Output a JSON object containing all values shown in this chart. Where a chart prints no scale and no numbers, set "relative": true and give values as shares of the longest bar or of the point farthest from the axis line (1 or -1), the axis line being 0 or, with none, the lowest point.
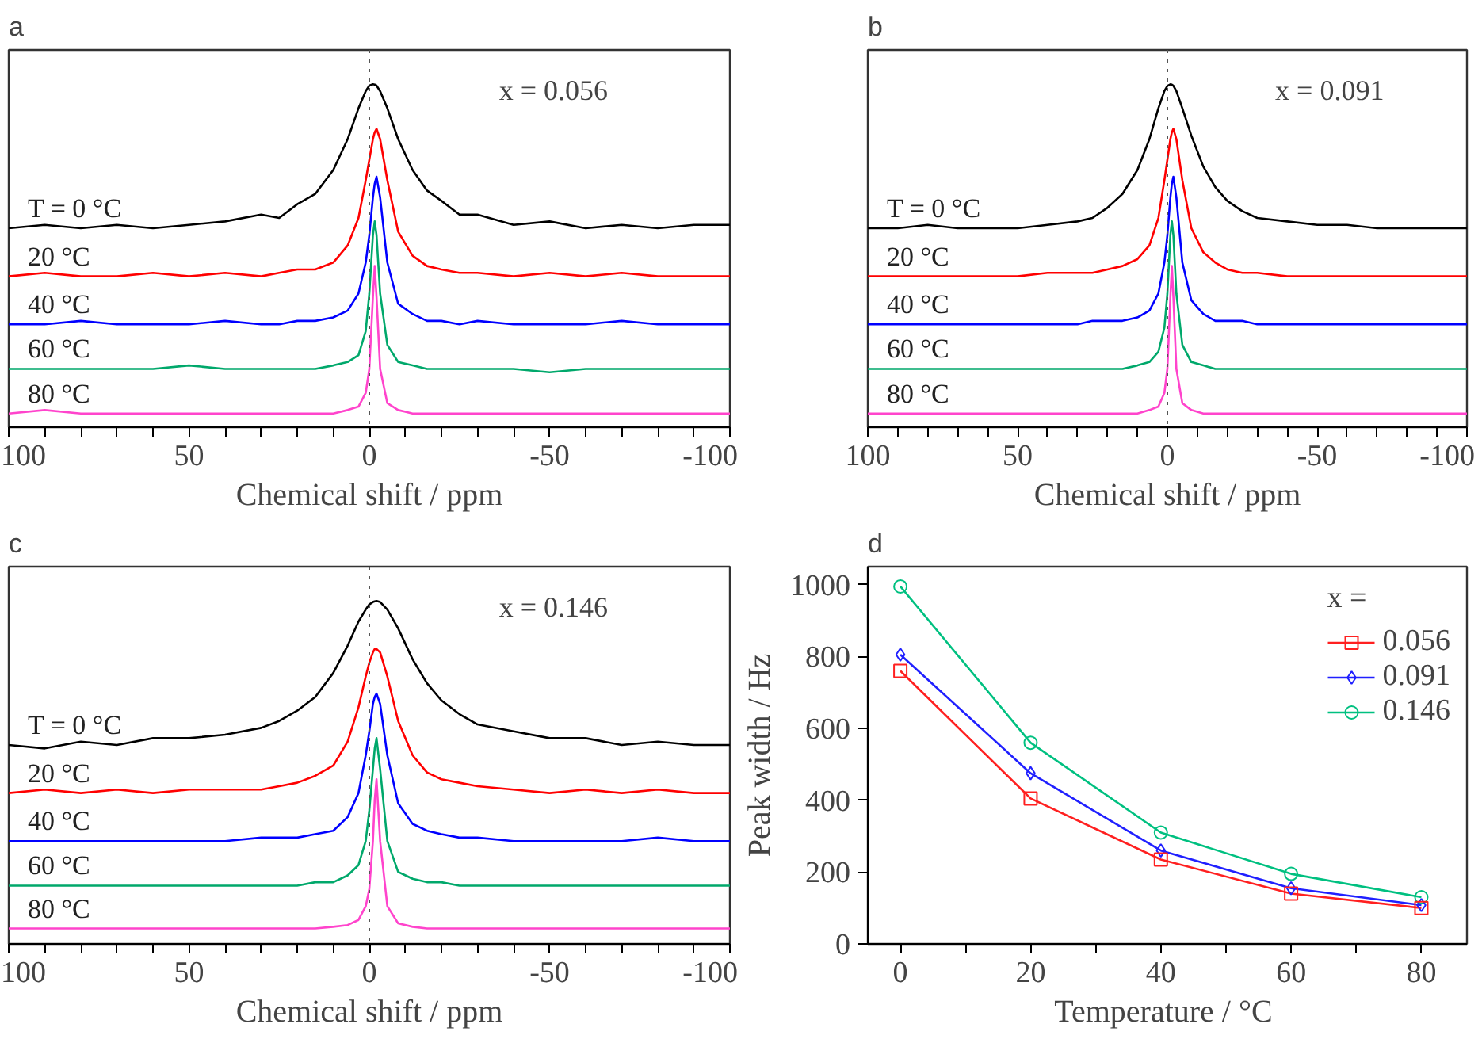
{
  "chart_data": [
    {
      "type": "line",
      "title": "a",
      "xlabel": "Chemical shift / ppm",
      "relative": true,
      "tick_labels": "x",
      "annotations": [
        "x = 0.056"
      ],
      "ref_lines": [
        {
          "axis": "x",
          "value": 0,
          "color": "#555555",
          "line_style": "dotted"
        }
      ],
      "xlim": [
        100,
        -100
      ],
      "xticks": [
        100,
        {
          "value": 90,
          "label": null
        },
        {
          "value": 80,
          "label": null
        },
        {
          "value": 70,
          "label": null
        },
        {
          "value": 60,
          "label": null
        },
        50,
        {
          "value": 40,
          "label": null
        },
        {
          "value": 30,
          "label": null
        },
        {
          "value": 20,
          "label": null
        },
        {
          "value": 10,
          "label": null
        },
        0,
        {
          "value": -10,
          "label": null
        },
        {
          "value": -20,
          "label": null
        },
        {
          "value": -30,
          "label": null
        },
        {
          "value": -40,
          "label": null
        },
        -50,
        {
          "value": -60,
          "label": null
        },
        {
          "value": -70,
          "label": null
        },
        {
          "value": -80,
          "label": null
        },
        {
          "value": -90,
          "label": null
        },
        -100
      ],
      "x": [
        100,
        90,
        80,
        70,
        60,
        50,
        40,
        30,
        25,
        20,
        15,
        10,
        6,
        3,
        1,
        0,
        -1,
        -1.5,
        -2,
        -3,
        -5,
        -8,
        -12,
        -16,
        -20,
        -25,
        -30,
        -40,
        -50,
        -60,
        -70,
        -80,
        -90,
        -100
      ],
      "series": [
        {
          "name": "T = 0 °C",
          "color": "#000000",
          "values": [
            0.58,
            0.59,
            0.58,
            0.59,
            0.58,
            0.59,
            0.6,
            0.62,
            0.61,
            0.65,
            0.68,
            0.75,
            0.84,
            0.93,
            0.98,
            0.996,
            1.0,
            0.999,
            0.996,
            0.98,
            0.93,
            0.84,
            0.75,
            0.69,
            0.66,
            0.62,
            0.62,
            0.59,
            0.6,
            0.58,
            0.59,
            0.58,
            0.59,
            0.59
          ]
        },
        {
          "name": "20 °C",
          "color": "#ff0000",
          "values": [
            0.44,
            0.45,
            0.44,
            0.44,
            0.45,
            0.44,
            0.45,
            0.44,
            0.45,
            0.46,
            0.46,
            0.48,
            0.53,
            0.61,
            0.72,
            0.78,
            0.84,
            0.86,
            0.87,
            0.84,
            0.72,
            0.57,
            0.5,
            0.47,
            0.46,
            0.45,
            0.45,
            0.44,
            0.45,
            0.44,
            0.45,
            0.44,
            0.44,
            0.44
          ]
        },
        {
          "name": "40 °C",
          "color": "#0000ff",
          "values": [
            0.3,
            0.3,
            0.31,
            0.3,
            0.3,
            0.3,
            0.31,
            0.3,
            0.3,
            0.31,
            0.31,
            0.32,
            0.34,
            0.39,
            0.48,
            0.56,
            0.67,
            0.71,
            0.73,
            0.67,
            0.48,
            0.36,
            0.33,
            0.31,
            0.31,
            0.3,
            0.31,
            0.3,
            0.3,
            0.3,
            0.31,
            0.3,
            0.3,
            0.3
          ]
        },
        {
          "name": "60 °C",
          "color": "#00a86b",
          "values": [
            0.17,
            0.17,
            0.17,
            0.17,
            0.17,
            0.18,
            0.17,
            0.17,
            0.17,
            0.17,
            0.17,
            0.18,
            0.19,
            0.21,
            0.28,
            0.39,
            0.56,
            0.6,
            0.56,
            0.39,
            0.24,
            0.19,
            0.18,
            0.17,
            0.17,
            0.17,
            0.17,
            0.17,
            0.16,
            0.17,
            0.17,
            0.17,
            0.17,
            0.17
          ]
        },
        {
          "name": "80 °C",
          "color": "#ff44cc",
          "values": [
            0.04,
            0.05,
            0.04,
            0.04,
            0.04,
            0.04,
            0.04,
            0.04,
            0.04,
            0.04,
            0.04,
            0.04,
            0.05,
            0.06,
            0.1,
            0.17,
            0.38,
            0.47,
            0.38,
            0.17,
            0.07,
            0.05,
            0.04,
            0.04,
            0.04,
            0.04,
            0.04,
            0.04,
            0.04,
            0.04,
            0.04,
            0.04,
            0.04,
            0.04
          ]
        }
      ]
    },
    {
      "type": "line",
      "title": "b",
      "xlabel": "Chemical shift / ppm",
      "relative": true,
      "tick_labels": "x",
      "annotations": [
        "x = 0.091"
      ],
      "ref_lines": [
        {
          "axis": "x",
          "value": 0,
          "color": "#555555",
          "line_style": "dotted"
        }
      ],
      "xlim": [
        100,
        -100
      ],
      "xticks": [
        100,
        {
          "value": 90,
          "label": null
        },
        {
          "value": 80,
          "label": null
        },
        {
          "value": 70,
          "label": null
        },
        {
          "value": 60,
          "label": null
        },
        50,
        {
          "value": 40,
          "label": null
        },
        {
          "value": 30,
          "label": null
        },
        {
          "value": 20,
          "label": null
        },
        {
          "value": 10,
          "label": null
        },
        0,
        {
          "value": -10,
          "label": null
        },
        {
          "value": -20,
          "label": null
        },
        {
          "value": -30,
          "label": null
        },
        {
          "value": -40,
          "label": null
        },
        -50,
        {
          "value": -60,
          "label": null
        },
        {
          "value": -70,
          "label": null
        },
        {
          "value": -80,
          "label": null
        },
        {
          "value": -90,
          "label": null
        },
        -100
      ],
      "x": [
        100,
        90,
        80,
        70,
        60,
        50,
        40,
        30,
        25,
        20,
        15,
        10,
        6,
        3,
        1,
        0,
        -1,
        -1.5,
        -2,
        -3,
        -5,
        -8,
        -12,
        -16,
        -20,
        -25,
        -30,
        -40,
        -50,
        -60,
        -70,
        -80,
        -90,
        -100
      ],
      "series": [
        {
          "name": "T = 0 °C",
          "color": "#000000",
          "values": [
            0.58,
            0.58,
            0.59,
            0.58,
            0.58,
            0.58,
            0.59,
            0.6,
            0.61,
            0.64,
            0.68,
            0.75,
            0.84,
            0.93,
            0.98,
            0.995,
            1.0,
            0.999,
            0.996,
            0.98,
            0.93,
            0.85,
            0.76,
            0.7,
            0.66,
            0.63,
            0.61,
            0.6,
            0.59,
            0.59,
            0.58,
            0.58,
            0.58,
            0.58
          ]
        },
        {
          "name": "20 °C",
          "color": "#ff0000",
          "values": [
            0.44,
            0.44,
            0.44,
            0.44,
            0.44,
            0.44,
            0.45,
            0.45,
            0.45,
            0.46,
            0.47,
            0.49,
            0.53,
            0.61,
            0.72,
            0.78,
            0.84,
            0.86,
            0.87,
            0.84,
            0.72,
            0.58,
            0.51,
            0.48,
            0.46,
            0.45,
            0.45,
            0.44,
            0.44,
            0.44,
            0.44,
            0.44,
            0.44,
            0.44
          ]
        },
        {
          "name": "40 °C",
          "color": "#0000ff",
          "values": [
            0.3,
            0.3,
            0.3,
            0.3,
            0.3,
            0.3,
            0.3,
            0.3,
            0.31,
            0.31,
            0.31,
            0.32,
            0.34,
            0.39,
            0.48,
            0.56,
            0.67,
            0.71,
            0.73,
            0.67,
            0.48,
            0.37,
            0.33,
            0.31,
            0.31,
            0.31,
            0.3,
            0.3,
            0.3,
            0.3,
            0.3,
            0.3,
            0.3,
            0.3
          ]
        },
        {
          "name": "60 °C",
          "color": "#00a86b",
          "values": [
            0.17,
            0.17,
            0.17,
            0.17,
            0.17,
            0.17,
            0.17,
            0.17,
            0.17,
            0.17,
            0.17,
            0.18,
            0.19,
            0.22,
            0.29,
            0.39,
            0.56,
            0.6,
            0.56,
            0.39,
            0.24,
            0.19,
            0.18,
            0.17,
            0.17,
            0.17,
            0.17,
            0.17,
            0.17,
            0.17,
            0.17,
            0.17,
            0.17,
            0.17
          ]
        },
        {
          "name": "80 °C",
          "color": "#ff44cc",
          "values": [
            0.04,
            0.04,
            0.04,
            0.04,
            0.04,
            0.04,
            0.04,
            0.04,
            0.04,
            0.04,
            0.04,
            0.04,
            0.05,
            0.06,
            0.1,
            0.17,
            0.38,
            0.47,
            0.38,
            0.17,
            0.07,
            0.05,
            0.04,
            0.04,
            0.04,
            0.04,
            0.04,
            0.04,
            0.04,
            0.04,
            0.04,
            0.04,
            0.04,
            0.04
          ]
        }
      ]
    },
    {
      "type": "line",
      "title": "c",
      "xlabel": "Chemical shift / ppm",
      "relative": true,
      "tick_labels": "x",
      "annotations": [
        "x = 0.146"
      ],
      "ref_lines": [
        {
          "axis": "x",
          "value": 0,
          "color": "#555555",
          "line_style": "dotted"
        }
      ],
      "xlim": [
        100,
        -100
      ],
      "xticks": [
        100,
        {
          "value": 90,
          "label": null
        },
        {
          "value": 80,
          "label": null
        },
        {
          "value": 70,
          "label": null
        },
        {
          "value": 60,
          "label": null
        },
        50,
        {
          "value": 40,
          "label": null
        },
        {
          "value": 30,
          "label": null
        },
        {
          "value": 20,
          "label": null
        },
        {
          "value": 10,
          "label": null
        },
        0,
        {
          "value": -10,
          "label": null
        },
        {
          "value": -20,
          "label": null
        },
        {
          "value": -30,
          "label": null
        },
        {
          "value": -40,
          "label": null
        },
        -50,
        {
          "value": -60,
          "label": null
        },
        {
          "value": -70,
          "label": null
        },
        {
          "value": -80,
          "label": null
        },
        {
          "value": -90,
          "label": null
        },
        -100
      ],
      "x": [
        100,
        90,
        80,
        70,
        60,
        50,
        40,
        30,
        25,
        20,
        15,
        10,
        6,
        3,
        1,
        0,
        -1,
        -1.5,
        -2,
        -3,
        -5,
        -8,
        -12,
        -16,
        -20,
        -25,
        -30,
        -40,
        -50,
        -60,
        -70,
        -80,
        -90,
        -100
      ],
      "series": [
        {
          "name": "T = 0 °C",
          "color": "#000000",
          "values": [
            0.58,
            0.57,
            0.59,
            0.58,
            0.6,
            0.6,
            0.61,
            0.63,
            0.65,
            0.68,
            0.72,
            0.79,
            0.87,
            0.94,
            0.975,
            0.99,
            0.997,
            0.999,
            1.0,
            0.997,
            0.975,
            0.92,
            0.83,
            0.76,
            0.71,
            0.67,
            0.64,
            0.62,
            0.6,
            0.6,
            0.58,
            0.59,
            0.58,
            0.58
          ]
        },
        {
          "name": "20 °C",
          "color": "#ff0000",
          "values": [
            0.44,
            0.45,
            0.44,
            0.45,
            0.44,
            0.45,
            0.45,
            0.45,
            0.46,
            0.47,
            0.49,
            0.52,
            0.59,
            0.69,
            0.78,
            0.82,
            0.85,
            0.86,
            0.86,
            0.85,
            0.78,
            0.65,
            0.55,
            0.5,
            0.48,
            0.47,
            0.46,
            0.45,
            0.44,
            0.45,
            0.44,
            0.45,
            0.44,
            0.44
          ]
        },
        {
          "name": "40 °C",
          "color": "#0000ff",
          "values": [
            0.3,
            0.3,
            0.3,
            0.3,
            0.3,
            0.3,
            0.3,
            0.31,
            0.31,
            0.31,
            0.32,
            0.33,
            0.37,
            0.44,
            0.55,
            0.62,
            0.7,
            0.72,
            0.73,
            0.7,
            0.55,
            0.41,
            0.35,
            0.33,
            0.32,
            0.31,
            0.31,
            0.3,
            0.3,
            0.3,
            0.3,
            0.31,
            0.3,
            0.3
          ]
        },
        {
          "name": "60 °C",
          "color": "#00a86b",
          "values": [
            0.17,
            0.17,
            0.17,
            0.17,
            0.17,
            0.17,
            0.17,
            0.17,
            0.17,
            0.17,
            0.18,
            0.18,
            0.2,
            0.23,
            0.3,
            0.39,
            0.51,
            0.57,
            0.6,
            0.51,
            0.3,
            0.21,
            0.19,
            0.18,
            0.18,
            0.17,
            0.17,
            0.17,
            0.17,
            0.17,
            0.17,
            0.17,
            0.17,
            0.17
          ]
        },
        {
          "name": "80 °C",
          "color": "#ff44cc",
          "values": [
            0.045,
            0.045,
            0.045,
            0.045,
            0.045,
            0.045,
            0.045,
            0.045,
            0.045,
            0.045,
            0.045,
            0.05,
            0.055,
            0.07,
            0.11,
            0.16,
            0.3,
            0.42,
            0.48,
            0.3,
            0.11,
            0.06,
            0.05,
            0.045,
            0.045,
            0.045,
            0.045,
            0.045,
            0.045,
            0.045,
            0.045,
            0.045,
            0.045,
            0.045
          ]
        }
      ]
    },
    {
      "type": "line",
      "title": "d",
      "xlabel": "Temperature  / °C",
      "ylabel": "Peak width / Hz",
      "legend": "top right",
      "legend_title": "x =",
      "xlim": [
        -5,
        87
      ],
      "xticks": [
        0,
        {
          "value": 10,
          "label": null
        },
        20,
        {
          "value": 30,
          "label": null
        },
        40,
        {
          "value": 50,
          "label": null
        },
        60,
        {
          "value": 70,
          "label": null
        },
        80
      ],
      "ylim": [
        0,
        1050
      ],
      "yticks": [
        0,
        200,
        400,
        600,
        800,
        1000
      ],
      "x": [
        0,
        20,
        40,
        60,
        80
      ],
      "series": [
        {
          "name": "0.056",
          "color": "#ff2020",
          "marker": "square",
          "values": [
            760,
            405,
            235,
            140,
            100
          ]
        },
        {
          "name": "0.091",
          "color": "#2020ff",
          "marker": "diamond",
          "values": [
            805,
            475,
            260,
            155,
            108
          ]
        },
        {
          "name": "0.146",
          "color": "#00c080",
          "marker": "circle",
          "values": [
            995,
            560,
            310,
            195,
            130
          ]
        }
      ]
    }
  ]
}
